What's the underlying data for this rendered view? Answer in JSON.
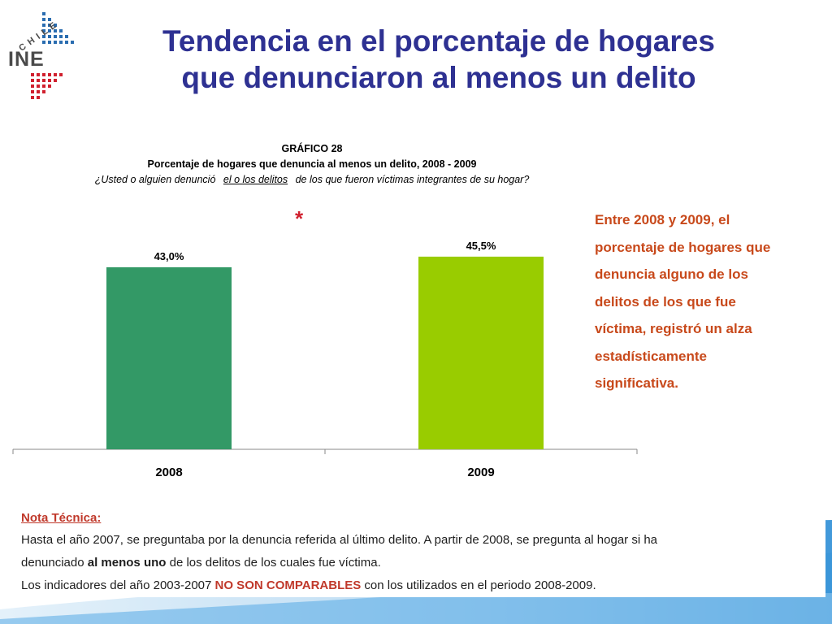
{
  "slide": {
    "title_line1": "Tendencia en el porcentaje de hogares",
    "title_line2": "que denunciaron al menos un delito",
    "logo": {
      "icon": "ine-chile-logo",
      "text": "INE",
      "country": "CHILE"
    }
  },
  "chart_data": {
    "type": "bar",
    "number": "GRÁFICO 28",
    "title": "Porcentaje de hogares que denuncia al menos un delito, 2008 - 2009",
    "question_pre": "¿Usted o alguien denunció",
    "question_underlined": "el o los delitos",
    "question_post": "de los que fueron víctimas integrantes de su hogar?",
    "categories": [
      "2008",
      "2009"
    ],
    "values": [
      43.0,
      45.5
    ],
    "value_labels": [
      "43,0%",
      "45,5%"
    ],
    "bar_colors": [
      "#339966",
      "#99cc00"
    ],
    "significance_marker": "*",
    "xlabel": "",
    "ylabel": "",
    "ylim": [
      0,
      50
    ],
    "grid": false,
    "legend": "none"
  },
  "side_note": "Entre 2008 y 2009, el porcentaje de hogares que denuncia alguno de los delitos de los que fue víctima, registró un alza estadísticamente significativa.",
  "technical_note": {
    "heading": "Nota Técnica:",
    "line1": "Hasta el año 2007, se preguntaba por la denuncia referida al último delito. A partir de 2008, se pregunta al hogar si ha",
    "line2_pre": "denunciado ",
    "line2_bold": "al menos uno",
    "line2_post": " de los delitos de los cuales fue víctima.",
    "line3_pre": "Los indicadores del año 2003-2007 ",
    "line3_bold": "NO SON COMPARABLES",
    "line3_post": " con los utilizados en el periodo 2008-2009."
  }
}
